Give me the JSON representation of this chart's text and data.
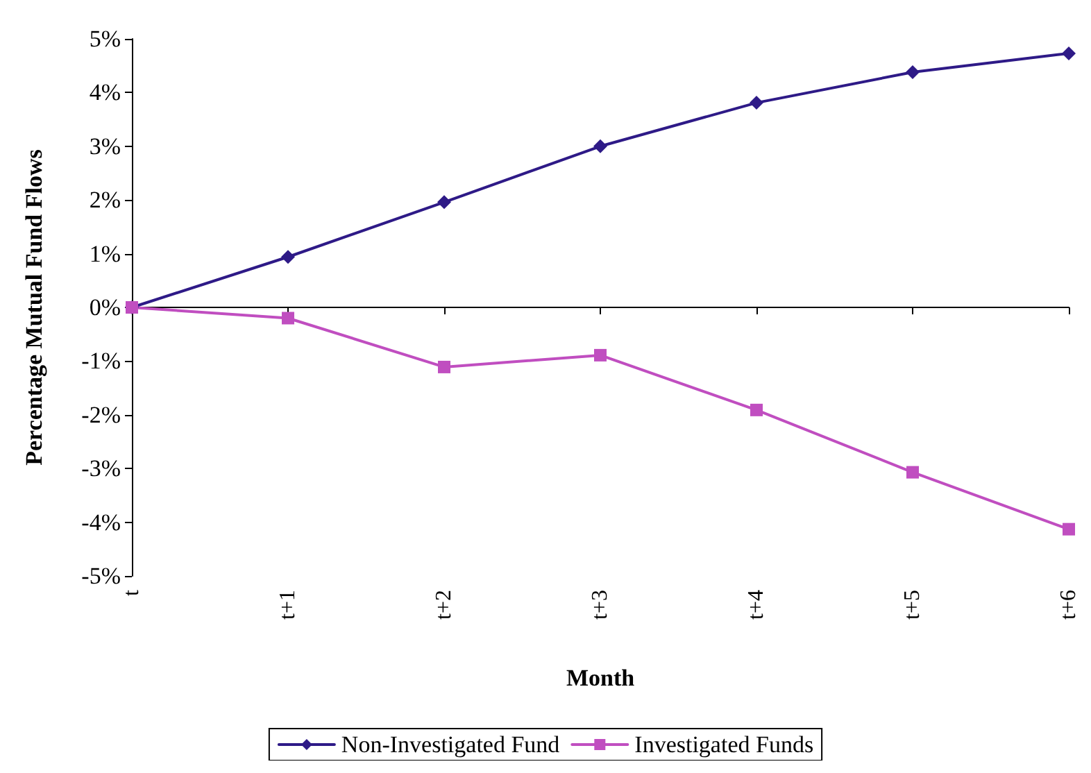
{
  "chart_data": {
    "type": "line",
    "xlabel": "Month",
    "ylabel": "Percentage Mutual Fund Flows",
    "categories": [
      "t",
      "t+1",
      "t+2",
      "t+3",
      "t+4",
      "t+5",
      "t+6"
    ],
    "series": [
      {
        "name": "Non-Investigated Fund",
        "color": "#2e1a87",
        "marker": "diamond",
        "values": [
          0,
          0.94,
          1.96,
          3.0,
          3.81,
          4.38,
          4.73
        ]
      },
      {
        "name": "Investigated Funds",
        "color": "#c04ec0",
        "marker": "square",
        "values": [
          0,
          -0.2,
          -1.11,
          -0.89,
          -1.91,
          -3.07,
          -4.13
        ]
      }
    ],
    "ylim": [
      -5,
      5
    ],
    "yticks": [
      {
        "value": -5,
        "label": "-5%"
      },
      {
        "value": -4,
        "label": "-4%"
      },
      {
        "value": -3,
        "label": "-3%"
      },
      {
        "value": -2,
        "label": "-2%"
      },
      {
        "value": -1,
        "label": "-1%"
      },
      {
        "value": 0,
        "label": "0%"
      },
      {
        "value": 1,
        "label": "1%"
      },
      {
        "value": 2,
        "label": "2%"
      },
      {
        "value": 3,
        "label": "3%"
      },
      {
        "value": 4,
        "label": "4%"
      },
      {
        "value": 5,
        "label": "5%"
      }
    ],
    "legend": "bottom",
    "line_style": "solid"
  }
}
